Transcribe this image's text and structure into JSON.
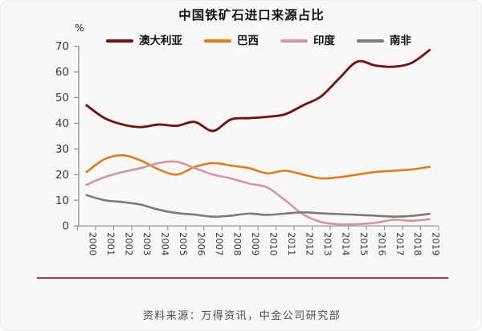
{
  "title": "中国铁矿石进口来源占比",
  "y_unit": "%",
  "source": "资料来源：万得资讯，中金公司研究部",
  "colors": {
    "australia": "#701510",
    "brazil": "#e07c1e",
    "india": "#d497a1",
    "south_africa": "#7b7b7b",
    "axis": "#9a9a9a",
    "tick_label": "#3a3a3a",
    "separator": "#9c4543"
  },
  "chart_data": {
    "type": "line",
    "smooth": true,
    "grid": false,
    "legend_position": "top",
    "title": "中国铁矿石进口来源占比",
    "ylabel": "%",
    "ylim": [
      0,
      70
    ],
    "yticks": [
      0,
      10,
      20,
      30,
      40,
      50,
      60,
      70
    ],
    "x": [
      2000,
      2001,
      2002,
      2003,
      2004,
      2005,
      2006,
      2007,
      2008,
      2009,
      2010,
      2011,
      2012,
      2013,
      2014,
      2015,
      2016,
      2017,
      2018,
      2019
    ],
    "series": [
      {
        "name": "澳大利亚",
        "color": "#701510",
        "values": [
          47,
          42,
          39.5,
          38.5,
          39.5,
          39,
          40.5,
          37,
          41.5,
          42,
          42.5,
          43.5,
          47,
          50.5,
          57.5,
          64,
          62.5,
          62,
          63.5,
          68.5
        ]
      },
      {
        "name": "巴西",
        "color": "#e07c1e",
        "values": [
          21,
          26,
          27.5,
          25.5,
          22,
          20,
          23,
          24.5,
          23.5,
          22.5,
          20.5,
          21.5,
          20,
          18.5,
          19,
          20,
          21,
          21.5,
          22,
          23
        ]
      },
      {
        "name": "印度",
        "color": "#d497a1",
        "values": [
          16,
          19,
          21,
          22.5,
          24.5,
          25,
          22.5,
          20,
          18.5,
          16.5,
          15,
          10,
          4.5,
          1.5,
          0.6,
          0.7,
          1.2,
          2.4,
          2,
          2.6
        ]
      },
      {
        "name": "南非",
        "color": "#7b7b7b",
        "values": [
          12,
          10,
          9.3,
          8.3,
          6.3,
          5,
          4.4,
          3.6,
          4,
          4.8,
          4.3,
          4.8,
          5.3,
          4.9,
          4.6,
          4.3,
          4,
          3.6,
          3.9,
          4.7
        ]
      }
    ]
  }
}
